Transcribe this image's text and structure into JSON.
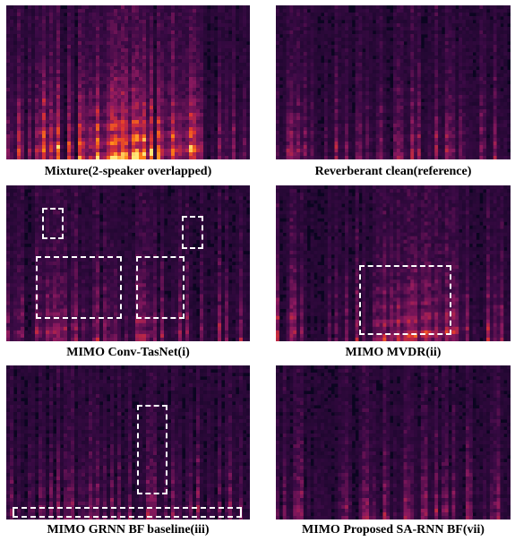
{
  "panels": [
    {
      "caption": "Mixture(2-speaker overlapped)",
      "variant": "mixture"
    },
    {
      "caption": "Reverberant clean(reference)",
      "variant": "clean"
    },
    {
      "caption": "MIMO Conv-TasNet(i)",
      "variant": "tasnet"
    },
    {
      "caption": "MIMO MVDR(ii)",
      "variant": "mvdr"
    },
    {
      "caption": "MIMO GRNN BF baseline(iii)",
      "variant": "grnn"
    },
    {
      "caption": "MIMO Proposed SA-RNN BF(vii)",
      "variant": "sarnn"
    }
  ],
  "colors": {
    "background": "#ffffff",
    "spectrogram_low": "#0b0520",
    "spectrogram_mid": "#7a1a6a",
    "spectrogram_high": "#ff6a10",
    "spectrogram_peak": "#ffe070",
    "highlight_box": "#ffffff"
  }
}
